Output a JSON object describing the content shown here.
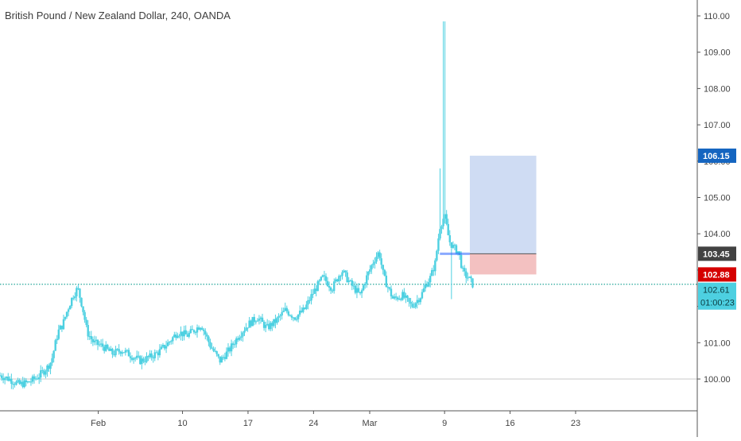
{
  "header": {
    "title": "British Pound / New Zealand Dollar, 240, OANDA"
  },
  "colors": {
    "candle": "#4dd0e1",
    "grid_line": "#c8c8c8",
    "price_line": "#26a69a",
    "target_zone": "#cfdcf3",
    "stop_zone": "#f3c1c1",
    "badge_target": "#1565c0",
    "badge_entry": "#424242",
    "badge_stop": "#d50000",
    "badge_current": "#4dd0e1"
  },
  "chart_data": {
    "type": "candlestick",
    "symbol": "GBPNZD",
    "interval": "240",
    "ylim": [
      99.1,
      110.35
    ],
    "y_ticks": [
      "100.00",
      "101.00",
      "102.00",
      "103.00",
      "104.00",
      "105.00",
      "106.00",
      "107.00",
      "108.00",
      "109.00",
      "110.00"
    ],
    "x_ticks": [
      "Feb",
      "10",
      "17",
      "24",
      "Mar",
      "9",
      "16",
      "23"
    ],
    "x_tick_days": [
      32,
      41,
      48,
      55,
      61,
      69,
      76,
      83
    ],
    "x_range_days": [
      21.5,
      96.0
    ],
    "reference_line": 100.0,
    "current_price": 102.61,
    "countdown": "01:00:23",
    "position": {
      "entry": "103.45",
      "target": "106.15",
      "stop": "102.88",
      "start_day": 71.7,
      "end_day": 78.8
    },
    "entry_marker": {
      "value": 103.45,
      "start_day": 68.5,
      "end_day": 71.7
    },
    "price_path": [
      [
        21.5,
        100.1
      ],
      [
        22.5,
        100.0
      ],
      [
        23.5,
        99.85
      ],
      [
        24.5,
        99.9
      ],
      [
        25.5,
        100.05
      ],
      [
        26.5,
        100.3
      ],
      [
        27.0,
        100.5
      ],
      [
        27.7,
        101.3
      ],
      [
        28.2,
        101.5
      ],
      [
        28.7,
        101.9
      ],
      [
        29.3,
        102.3
      ],
      [
        29.8,
        102.5
      ],
      [
        30.3,
        102.0
      ],
      [
        30.8,
        101.3
      ],
      [
        31.5,
        101.0
      ],
      [
        32.5,
        100.9
      ],
      [
        33.5,
        100.7
      ],
      [
        34.5,
        100.8
      ],
      [
        35.5,
        100.65
      ],
      [
        36.5,
        100.5
      ],
      [
        37.5,
        100.6
      ],
      [
        38.5,
        100.75
      ],
      [
        39.5,
        101.0
      ],
      [
        40.5,
        101.3
      ],
      [
        41.5,
        101.2
      ],
      [
        42.5,
        101.4
      ],
      [
        43.0,
        101.5
      ],
      [
        44.0,
        100.9
      ],
      [
        45.0,
        100.5
      ],
      [
        46.0,
        100.8
      ],
      [
        47.0,
        101.2
      ],
      [
        48.0,
        101.5
      ],
      [
        49.0,
        101.7
      ],
      [
        50.0,
        101.4
      ],
      [
        51.0,
        101.6
      ],
      [
        52.0,
        101.9
      ],
      [
        53.0,
        101.7
      ],
      [
        54.0,
        101.9
      ],
      [
        55.0,
        102.4
      ],
      [
        56.0,
        102.8
      ],
      [
        57.0,
        102.5
      ],
      [
        58.0,
        103.0
      ],
      [
        59.0,
        102.6
      ],
      [
        60.0,
        102.3
      ],
      [
        60.5,
        102.7
      ],
      [
        61.5,
        103.3
      ],
      [
        62.0,
        103.5
      ],
      [
        62.5,
        102.8
      ],
      [
        63.5,
        102.2
      ],
      [
        64.5,
        102.3
      ],
      [
        65.5,
        102.0
      ],
      [
        66.5,
        102.3
      ],
      [
        67.0,
        102.6
      ],
      [
        67.5,
        102.8
      ],
      [
        68.0,
        103.2
      ],
      [
        68.5,
        104.2
      ],
      [
        69.0,
        104.5
      ],
      [
        69.5,
        103.8
      ],
      [
        70.0,
        103.6
      ],
      [
        70.5,
        103.5
      ],
      [
        71.0,
        102.9
      ],
      [
        71.5,
        102.8
      ],
      [
        72.0,
        102.61
      ]
    ]
  },
  "price_scale": {
    "badge_current_value": "102.61"
  }
}
